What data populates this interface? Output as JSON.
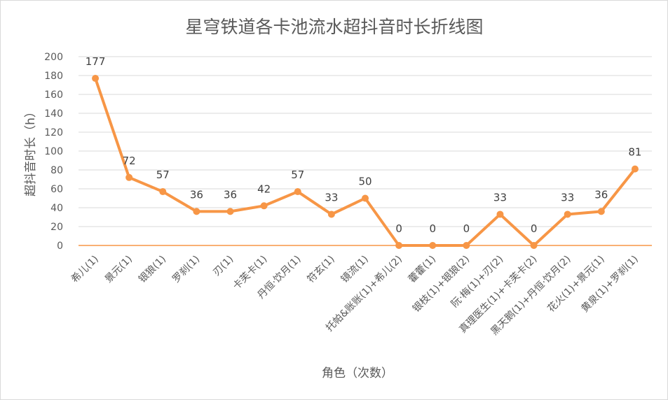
{
  "chart_data": {
    "type": "line",
    "title": "星穹铁道各卡池流水超抖音时长折线图",
    "xlabel": "角色（次数）",
    "ylabel": "超抖音时长（h）",
    "ylim": [
      0,
      200
    ],
    "yticks": [
      0,
      20,
      40,
      60,
      80,
      100,
      120,
      140,
      160,
      180,
      200
    ],
    "grid": true,
    "legend": "none",
    "categories": [
      "希儿(1)",
      "景元(1)",
      "银狼(1)",
      "罗刹(1)",
      "刃(1)",
      "卡芙卡(1)",
      "丹恒·饮月(1)",
      "符玄(1)",
      "镜流(1)",
      "托帕&账账(1)+希儿(2)",
      "藿藿(1)",
      "银枝(1)+银狼(2)",
      "阮·梅(1)+刃(2)",
      "真理医生(1)+卡芙卡(2)",
      "黑天鹅(1)+丹恒·饮月(2)",
      "花火(1)+景元(1)",
      "黄泉(1)+罗刹(1)"
    ],
    "series": [
      {
        "values": [
          177,
          72,
          57,
          36,
          36,
          42,
          57,
          33,
          50,
          0,
          0,
          0,
          33,
          0,
          33,
          36,
          81
        ],
        "labels": [
          "177",
          "72",
          "57",
          "36",
          "36",
          "42",
          "57",
          "33",
          "50",
          "0",
          "0",
          "0",
          "33",
          "0",
          "33",
          "36",
          "81"
        ],
        "color": "#f79646"
      }
    ],
    "colors": {
      "grid": "#d9d9d9",
      "zero_axis": "#f79646",
      "text": "#595959"
    }
  }
}
